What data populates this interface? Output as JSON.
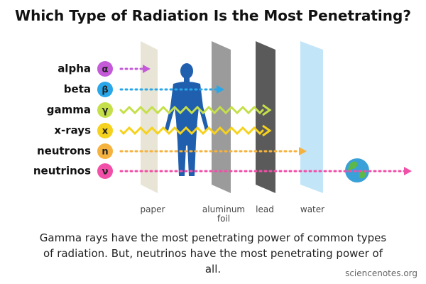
{
  "title": "Which Type of Radiation Is the Most Penetrating?",
  "radiation": [
    {
      "label": "alpha",
      "symbol": "α"
    },
    {
      "label": "beta",
      "symbol": "β"
    },
    {
      "label": "gamma",
      "symbol": "γ"
    },
    {
      "label": "x-rays",
      "symbol": "x"
    },
    {
      "label": "neutrons",
      "symbol": "n"
    },
    {
      "label": "neutrinos",
      "symbol": "ν"
    }
  ],
  "barriers": [
    "paper",
    "aluminum foil",
    "lead",
    "water"
  ],
  "caption": "Gamma rays have the most penetrating power of common types of radiation. But, neutrinos have the most penetrating power of all.",
  "credit": "sciencenotes.org"
}
